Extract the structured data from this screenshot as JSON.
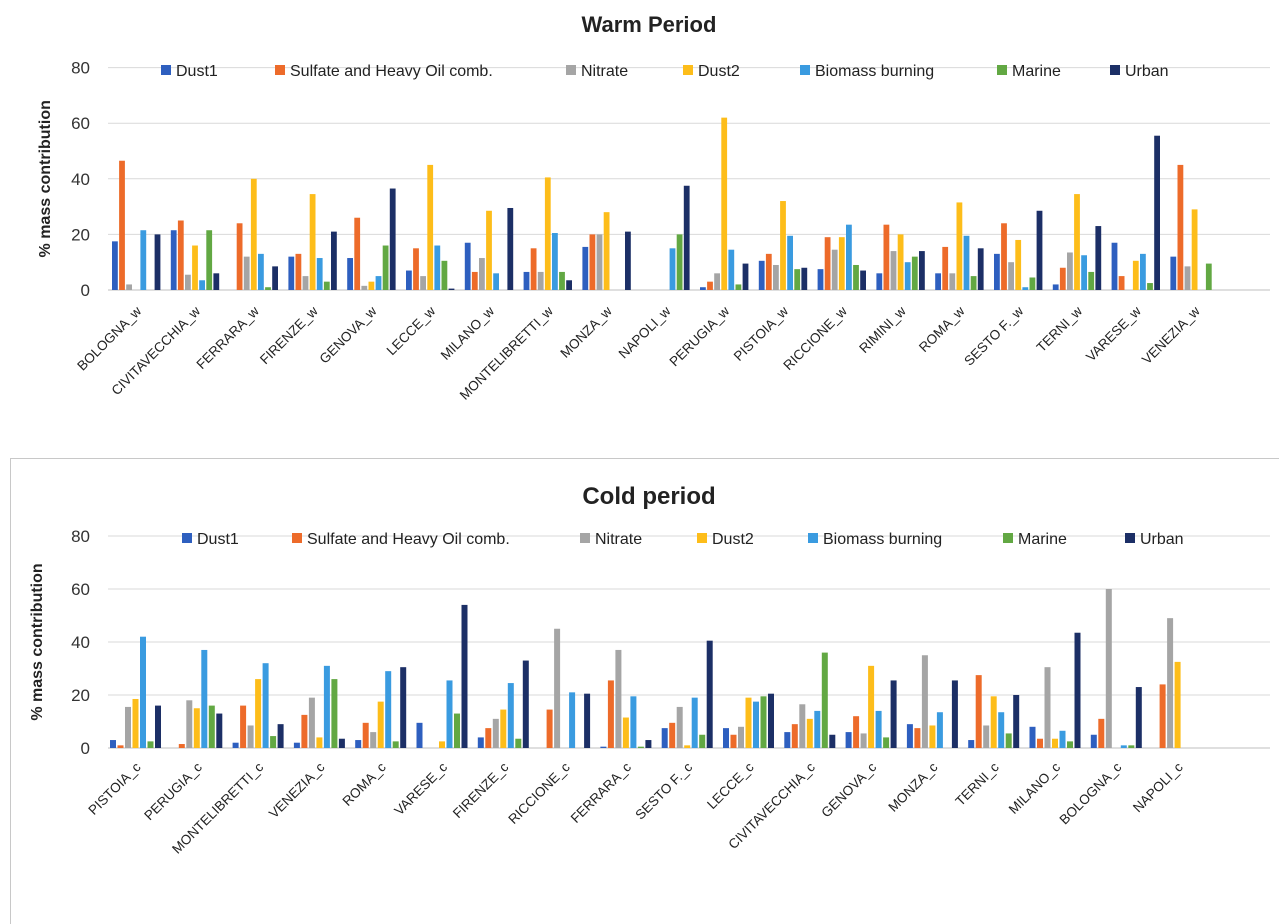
{
  "charts": [
    {
      "type": "bar",
      "title": "Warm Period",
      "xlabel": "",
      "ylabel": "% mass contribution",
      "ylim": [
        0,
        80
      ],
      "yticks": [
        0,
        20,
        40,
        60,
        80
      ],
      "grid": true,
      "legend_position": "top",
      "categories": [
        "BOLOGNA_w",
        "CIVITAVECCHIA_w",
        "FERRARA_w",
        "FIRENZE_w",
        "GENOVA_w",
        "LECCE_w",
        "MILANO_w",
        "MONTELIBRETTI_w",
        "MONZA_w",
        "NAPOLI_w",
        "PERUGIA_w",
        "PISTOIA_w",
        "RICCIONE_w",
        "RIMINI_w",
        "ROMA_w",
        "SESTO F._w",
        "TERNI_w",
        "VARESE_w",
        "VENEZIA_w"
      ],
      "series": [
        {
          "name": "Dust1",
          "color": "#2e5fbf",
          "values": [
            17.5,
            21.5,
            0,
            12,
            11.5,
            7,
            17,
            6.5,
            15.5,
            0,
            1,
            10.5,
            7.5,
            6,
            6,
            13,
            2,
            17,
            12
          ]
        },
        {
          "name": "Sulfate and Heavy Oil comb.",
          "color": "#ed6b2a",
          "values": [
            46.5,
            25,
            24,
            13,
            26,
            15,
            6.5,
            15,
            20,
            0,
            3,
            13,
            19,
            23.5,
            15.5,
            24,
            8,
            5,
            45
          ]
        },
        {
          "name": "Nitrate",
          "color": "#a5a5a5",
          "values": [
            2,
            5.5,
            12,
            5,
            1.5,
            5,
            11.5,
            6.5,
            20,
            0,
            6,
            9,
            14.5,
            14,
            6,
            10,
            13.5,
            0,
            8.5
          ]
        },
        {
          "name": "Dust2",
          "color": "#fdbd1a",
          "values": [
            0,
            16,
            40,
            34.5,
            3,
            45,
            28.5,
            40.5,
            28,
            0,
            62,
            32,
            19,
            20,
            31.5,
            18,
            34.5,
            10.5,
            29
          ]
        },
        {
          "name": "Biomass burning",
          "color": "#3a9be0",
          "values": [
            21.5,
            3.5,
            13,
            11.5,
            5,
            16,
            6,
            20.5,
            0,
            15,
            14.5,
            19.5,
            23.5,
            10,
            19.5,
            1,
            12.5,
            13,
            0
          ]
        },
        {
          "name": "Marine",
          "color": "#62a843",
          "values": [
            0,
            21.5,
            1,
            3,
            16,
            10.5,
            0,
            6.5,
            0,
            20,
            2,
            7.5,
            9,
            12,
            5,
            4.5,
            6.5,
            2.5,
            9.5
          ]
        },
        {
          "name": "Urban",
          "color": "#1c2f66",
          "values": [
            20,
            6,
            8.5,
            21,
            36.5,
            0.5,
            29.5,
            3.5,
            21,
            37.5,
            9.5,
            8,
            7,
            14,
            15,
            28.5,
            23,
            55.5,
            0
          ]
        }
      ]
    },
    {
      "type": "bar",
      "title": "Cold period",
      "xlabel": "",
      "ylabel": "% mass contribution",
      "ylim": [
        0,
        80
      ],
      "yticks": [
        0,
        20,
        40,
        60,
        80
      ],
      "grid": true,
      "legend_position": "top",
      "categories": [
        "PISTOIA_c",
        "PERUGIA_c",
        "MONTELIBRETTI_c",
        "VENEZIA_c",
        "ROMA_c",
        "VARESE_c",
        "FIRENZE_c",
        "RICCIONE_c",
        "FERRARA_c",
        "SESTO F._c",
        "LECCE_c",
        "CIVITAVECCHIA_c",
        "GENOVA_c",
        "MONZA_c",
        "TERNI_c",
        "MILANO_c",
        "BOLOGNA_c",
        "NAPOLI_c"
      ],
      "series": [
        {
          "name": "Dust1",
          "color": "#2e5fbf",
          "values": [
            3,
            0,
            2,
            2,
            3,
            9.5,
            4,
            0,
            0.5,
            7.5,
            7.5,
            6,
            6,
            9,
            3,
            8,
            5,
            0
          ]
        },
        {
          "name": "Sulfate and Heavy Oil comb.",
          "color": "#ed6b2a",
          "values": [
            1,
            1.5,
            16,
            12.5,
            9.5,
            0,
            7.5,
            14.5,
            25.5,
            9.5,
            5,
            9,
            12,
            7.5,
            27.5,
            3.5,
            11,
            24
          ]
        },
        {
          "name": "Nitrate",
          "color": "#a5a5a5",
          "values": [
            15.5,
            18,
            8.5,
            19,
            6,
            0,
            11,
            45,
            37,
            15.5,
            8,
            16.5,
            5.5,
            35,
            8.5,
            30.5,
            60,
            49
          ]
        },
        {
          "name": "Dust2",
          "color": "#fdbd1a",
          "values": [
            18.5,
            15,
            26,
            4,
            17.5,
            2.5,
            14.5,
            0,
            11.5,
            1,
            19,
            11,
            31,
            8.5,
            19.5,
            3.5,
            0,
            32.5
          ]
        },
        {
          "name": "Biomass burning",
          "color": "#3a9be0",
          "values": [
            42,
            37,
            32,
            31,
            29,
            25.5,
            24.5,
            21,
            19.5,
            19,
            17.5,
            14,
            14,
            13.5,
            13.5,
            6.5,
            1,
            0
          ]
        },
        {
          "name": "Marine",
          "color": "#62a843",
          "values": [
            2.5,
            16,
            4.5,
            26,
            2.5,
            13,
            3.5,
            0,
            0.5,
            5,
            19.5,
            36,
            4,
            0,
            5.5,
            2.5,
            1,
            0
          ]
        },
        {
          "name": "Urban",
          "color": "#1c2f66",
          "values": [
            16,
            13,
            9,
            3.5,
            30.5,
            54,
            33,
            20.5,
            3,
            40.5,
            20.5,
            5,
            25.5,
            25.5,
            20,
            43.5,
            23,
            0
          ]
        }
      ]
    }
  ]
}
